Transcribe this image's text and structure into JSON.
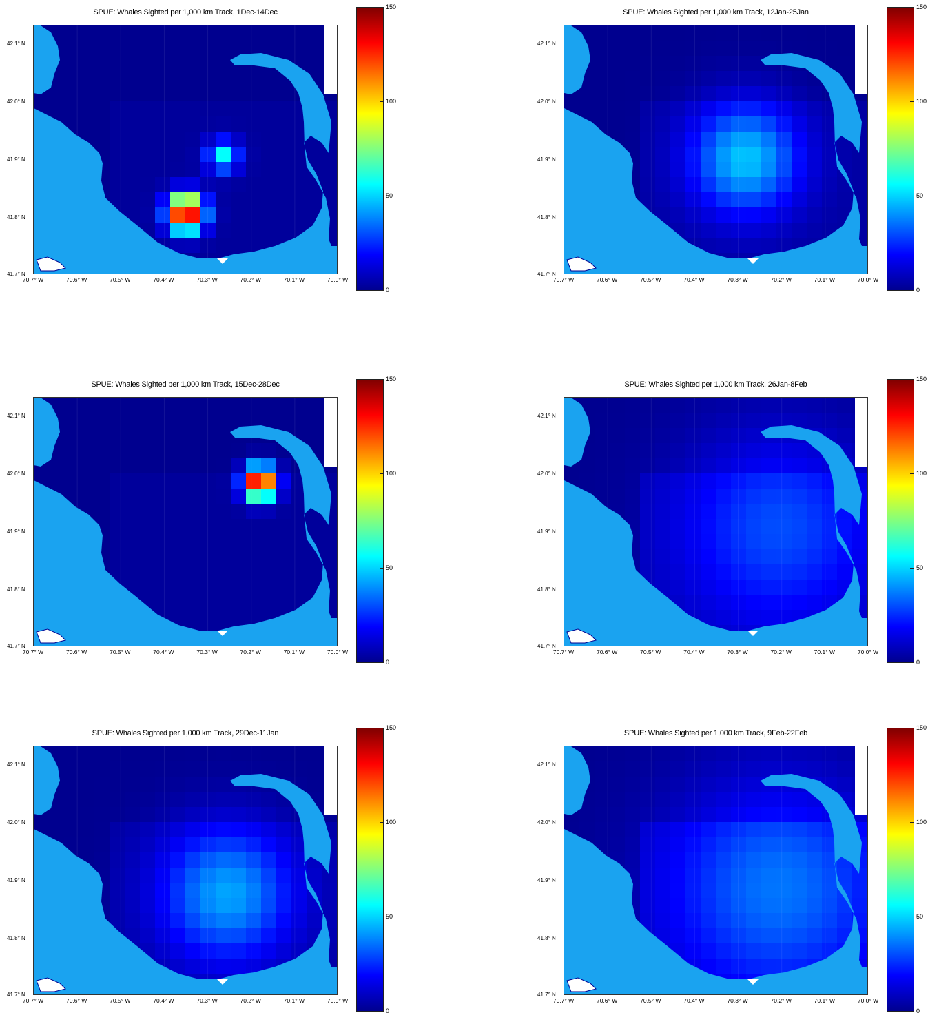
{
  "colors": {
    "ocean_zero": "#00008f",
    "land": "#1aa3f0",
    "no_data": "#ffffff"
  },
  "colorbar_ticks": [
    "150",
    "100",
    "50",
    "0"
  ],
  "y_ticks": [
    "42.1° N",
    "42.0° N",
    "41.9° N",
    "41.8° N",
    "41.7° N"
  ],
  "x_ticks": [
    "70.7° W",
    "70.6° W",
    "70.5° W",
    "70.4° W",
    "70.3° W",
    "70.2° W",
    "70.1° W",
    "70.0° W"
  ],
  "panels": [
    {
      "title": "SPUE: Whales Sighted per 1,000 km Track, 1Dec-14Dec",
      "hotspots": [
        {
          "lon": -70.35,
          "lat": 41.82,
          "level": 150,
          "spread": 0.045
        },
        {
          "lon": -70.26,
          "lat": 41.92,
          "level": 55,
          "spread": 0.04
        }
      ],
      "background_level": 2
    },
    {
      "title": "SPUE: Whales Sighted per 1,000 km Track, 12Jan-25Jan",
      "hotspots": [
        {
          "lon": -70.28,
          "lat": 41.915,
          "level": 45,
          "spread": 0.14
        }
      ],
      "background_level": 3
    },
    {
      "title": "SPUE: Whales Sighted per 1,000 km Track, 15Dec-28Dec",
      "hotspots": [
        {
          "lon": -70.17,
          "lat": 42.0,
          "level": 150,
          "spread": 0.04
        }
      ],
      "background_level": 2
    },
    {
      "title": "SPUE: Whales Sighted per 1,000 km Track, 26Jan-8Feb",
      "hotspots": [
        {
          "lon": -70.2,
          "lat": 41.92,
          "level": 25,
          "spread": 0.25
        }
      ],
      "background_level": 5
    },
    {
      "title": "SPUE: Whales Sighted per 1,000 km Track, 29Dec-11Jan",
      "hotspots": [
        {
          "lon": -70.25,
          "lat": 41.89,
          "level": 40,
          "spread": 0.17
        }
      ],
      "background_level": 3
    },
    {
      "title": "SPUE: Whales Sighted per 1,000 km Track, 9Feb-22Feb",
      "hotspots": [
        {
          "lon": -70.2,
          "lat": 41.9,
          "level": 30,
          "spread": 0.28
        }
      ],
      "background_level": 6
    }
  ]
}
